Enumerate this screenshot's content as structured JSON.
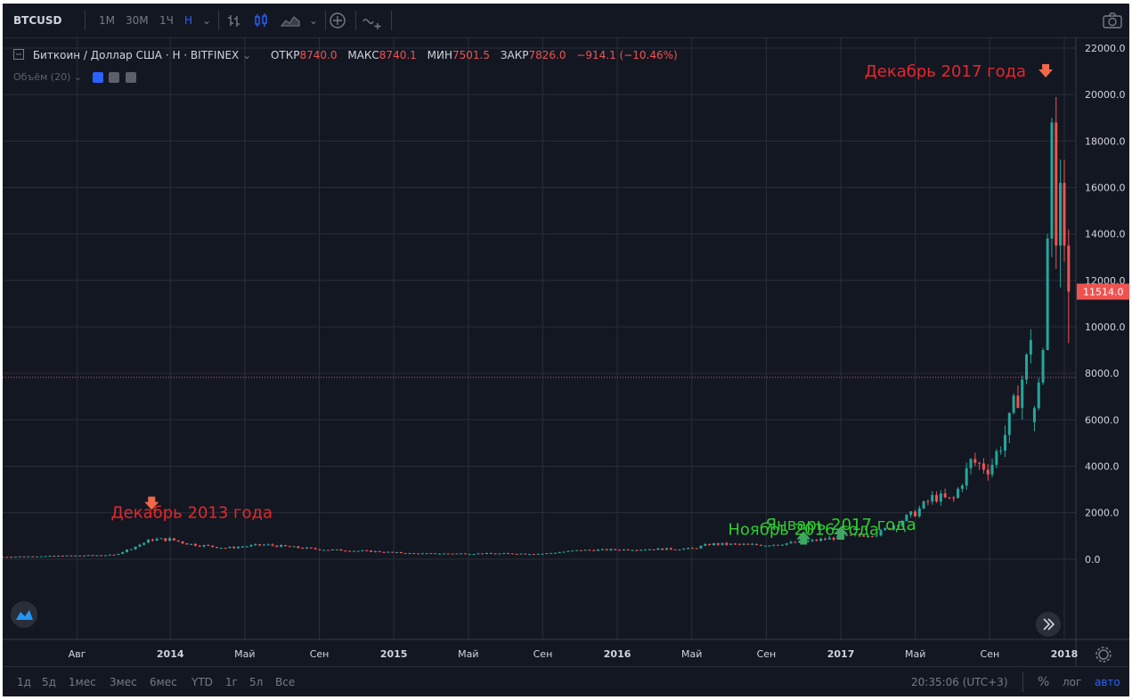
{
  "toolbar": {
    "symbol": "BTCUSD",
    "intervals": [
      "1M",
      "30M",
      "1Ч",
      "Н"
    ],
    "active_interval": "Н"
  },
  "legend": {
    "title": "Биткоин / Доллар США · Н · BITFINEX",
    "open_label": "ОТКР",
    "open": "8740.0",
    "high_label": "МАКС",
    "high": "8740.1",
    "low_label": "МИН",
    "low": "7501.5",
    "close_label": "ЗАКР",
    "close": "7826.0",
    "change": "−914.1 (−10.46%)",
    "volume": "Объём (20)"
  },
  "bottom": {
    "ranges": [
      "1д",
      "5д",
      "1мес",
      "3мес",
      "6мес",
      "YTD",
      "1г",
      "5л",
      "Все"
    ],
    "clock": "20:35:06 (UTC+3)",
    "percent": "%",
    "log": "лог",
    "auto": "авто"
  },
  "colors": {
    "background": "#131722",
    "up": "#26a69a",
    "down": "#ef5350",
    "grid": "#2a2e39",
    "text": "#d1d4dc",
    "annotation_red": "#e8262b",
    "annotation_green": "#2ecc2e"
  },
  "chart_data": {
    "type": "candlestick",
    "grid": true,
    "ylim": [
      -2000,
      22000
    ],
    "xlim": [
      "2013-04",
      "2018-01"
    ],
    "y_ticks": [
      0,
      2000,
      4000,
      6000,
      8000,
      10000,
      12000,
      14000,
      16000,
      18000,
      20000,
      22000
    ],
    "y_tick_labels": [
      "0.0",
      "2000.0",
      "4000.0",
      "6000.0",
      "8000.0",
      "10000.0",
      "12000.0",
      "14000.0",
      "16000.0",
      "18000.0",
      "20000.0",
      "22000.0"
    ],
    "x_ticks": [
      {
        "label": "Авг",
        "x": "2013-08",
        "bold": false
      },
      {
        "label": "2014",
        "x": "2014-01",
        "bold": true
      },
      {
        "label": "Май",
        "x": "2014-05",
        "bold": false
      },
      {
        "label": "Сен",
        "x": "2014-09",
        "bold": false
      },
      {
        "label": "2015",
        "x": "2015-01",
        "bold": true
      },
      {
        "label": "Май",
        "x": "2015-05",
        "bold": false
      },
      {
        "label": "Сен",
        "x": "2015-09",
        "bold": false
      },
      {
        "label": "2016",
        "x": "2016-01",
        "bold": true
      },
      {
        "label": "Май",
        "x": "2016-05",
        "bold": false
      },
      {
        "label": "Сен",
        "x": "2016-09",
        "bold": false
      },
      {
        "label": "2017",
        "x": "2017-01",
        "bold": true
      },
      {
        "label": "Май",
        "x": "2017-05",
        "bold": false
      },
      {
        "label": "Сен",
        "x": "2017-09",
        "bold": false
      },
      {
        "label": "2018",
        "x": "2018-01",
        "bold": true
      }
    ],
    "last_price": "11514.0",
    "last_price_value": 11514,
    "reference_line": 7826,
    "anchors": [
      [
        "2013-04",
        100
      ],
      [
        "2013-10",
        180
      ],
      [
        "2013-11",
        500
      ],
      [
        "2013-12",
        850
      ],
      [
        "2014-01",
        850
      ],
      [
        "2014-02",
        650
      ],
      [
        "2014-04",
        480
      ],
      [
        "2014-06",
        620
      ],
      [
        "2014-09",
        420
      ],
      [
        "2014-12",
        330
      ],
      [
        "2015-02",
        240
      ],
      [
        "2015-06",
        240
      ],
      [
        "2015-09",
        235
      ],
      [
        "2015-11",
        380
      ],
      [
        "2016-02",
        420
      ],
      [
        "2016-05",
        450
      ],
      [
        "2016-06",
        650
      ],
      [
        "2016-09",
        610
      ],
      [
        "2016-11",
        740
      ],
      [
        "2017-01",
        950
      ],
      [
        "2017-03",
        1100
      ],
      [
        "2017-05",
        2000
      ],
      [
        "2017-06",
        2700
      ],
      [
        "2017-07",
        2500
      ],
      [
        "2017-08",
        4200
      ],
      [
        "2017-09",
        3900
      ],
      [
        "2017-10",
        5700
      ],
      [
        "2017-11",
        8500
      ],
      [
        "2017-12",
        15000
      ],
      [
        "2018-01",
        12000
      ]
    ],
    "late_candles": [
      {
        "x": "2017-11-13",
        "o": 5900,
        "h": 6600,
        "l": 5500,
        "c": 6500
      },
      {
        "x": "2017-11-20",
        "o": 6500,
        "h": 7800,
        "l": 6400,
        "c": 7600
      },
      {
        "x": "2017-11-27",
        "o": 7600,
        "h": 9100,
        "l": 7500,
        "c": 9000
      },
      {
        "x": "2017-12-04",
        "o": 9000,
        "h": 14000,
        "l": 9000,
        "c": 13800
      },
      {
        "x": "2017-12-11",
        "o": 13800,
        "h": 19000,
        "l": 13000,
        "c": 18800
      },
      {
        "x": "2017-12-18",
        "o": 18800,
        "h": 19900,
        "l": 12500,
        "c": 13500
      },
      {
        "x": "2017-12-25",
        "o": 13500,
        "h": 17200,
        "l": 11700,
        "c": 16200
      },
      {
        "x": "2018-01-01",
        "o": 16200,
        "h": 17200,
        "l": 12800,
        "c": 13500
      },
      {
        "x": "2018-01-08",
        "o": 13500,
        "h": 14200,
        "l": 9300,
        "c": 11514
      }
    ],
    "annotations": [
      {
        "text": "Декабрь 2013 года",
        "x": "2013-12",
        "color": "red",
        "arrow": "down"
      },
      {
        "text": "Ноябрь 2016 года",
        "x": "2016-11",
        "color": "green",
        "arrow": "up"
      },
      {
        "text": "Январь 2017 года",
        "x": "2017-01",
        "color": "green",
        "arrow": "up"
      },
      {
        "text": "Декабрь 2017 года",
        "x": "2017-12",
        "color": "red",
        "arrow": "down"
      }
    ]
  }
}
